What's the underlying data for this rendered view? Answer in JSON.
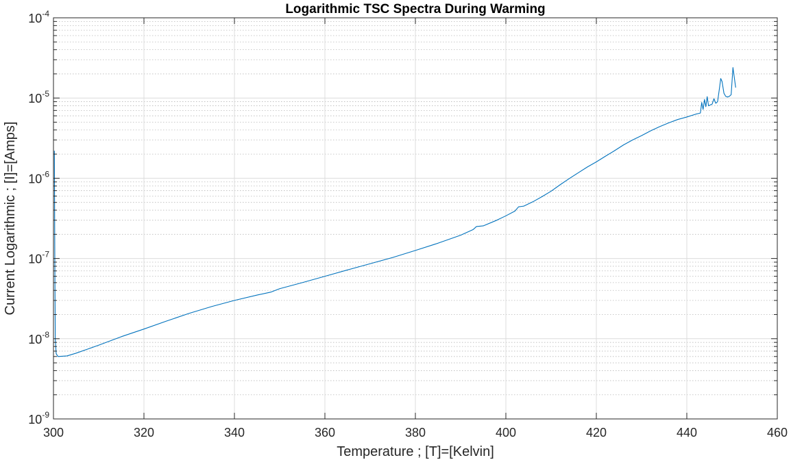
{
  "chart_data": {
    "type": "line",
    "title": "Logarithmic TSC Spectra During Warming",
    "xlabel": "Temperature ; [T]=[Kelvin]",
    "ylabel": "Current Logarithmic ; [I]=[Amps]",
    "xlim": [
      300,
      460
    ],
    "ylim": [
      1e-09,
      0.0001
    ],
    "yscale": "log",
    "grid": true,
    "minor_grid": true,
    "x_ticks": [
      300,
      320,
      340,
      360,
      380,
      400,
      420,
      440,
      460
    ],
    "y_ticks": [
      {
        "base": "10",
        "exp": "-9",
        "value": 1e-09
      },
      {
        "base": "10",
        "exp": "-8",
        "value": 1e-08
      },
      {
        "base": "10",
        "exp": "-7",
        "value": 1e-07
      },
      {
        "base": "10",
        "exp": "-6",
        "value": 1e-06
      },
      {
        "base": "10",
        "exp": "-5",
        "value": 1e-05
      },
      {
        "base": "10",
        "exp": "-4",
        "value": 0.0001
      }
    ],
    "series": [
      {
        "color": "#0072BD",
        "points": [
          [
            300.2,
            2.2e-06
          ],
          [
            300.3,
            1e-07
          ],
          [
            300.4,
            1e-08
          ],
          [
            300.6,
            6.5e-09
          ],
          [
            301.0,
            6e-09
          ],
          [
            303,
            6.1e-09
          ],
          [
            305,
            6.6e-09
          ],
          [
            310,
            8.3e-09
          ],
          [
            315,
            1.06e-08
          ],
          [
            320,
            1.32e-08
          ],
          [
            325,
            1.66e-08
          ],
          [
            330,
            2.07e-08
          ],
          [
            335,
            2.52e-08
          ],
          [
            340,
            3e-08
          ],
          [
            345,
            3.5e-08
          ],
          [
            348,
            3.8e-08
          ],
          [
            350,
            4.2e-08
          ],
          [
            355,
            5e-08
          ],
          [
            360,
            6e-08
          ],
          [
            365,
            7.2e-08
          ],
          [
            370,
            8.6e-08
          ],
          [
            375,
            1.03e-07
          ],
          [
            380,
            1.26e-07
          ],
          [
            385,
            1.55e-07
          ],
          [
            390,
            1.95e-07
          ],
          [
            392.8,
            2.3e-07
          ],
          [
            393.5,
            2.5e-07
          ],
          [
            395,
            2.55e-07
          ],
          [
            398,
            3e-07
          ],
          [
            400,
            3.4e-07
          ],
          [
            402,
            3.9e-07
          ],
          [
            402.8,
            4.4e-07
          ],
          [
            404,
            4.5e-07
          ],
          [
            406,
            5.1e-07
          ],
          [
            408,
            5.9e-07
          ],
          [
            410,
            6.9e-07
          ],
          [
            412,
            8.3e-07
          ],
          [
            414,
            9.9e-07
          ],
          [
            416,
            1.17e-06
          ],
          [
            418,
            1.38e-06
          ],
          [
            420,
            1.6e-06
          ],
          [
            422,
            1.88e-06
          ],
          [
            424,
            2.2e-06
          ],
          [
            426,
            2.6e-06
          ],
          [
            428,
            3e-06
          ],
          [
            430,
            3.4e-06
          ],
          [
            432,
            3.9e-06
          ],
          [
            434,
            4.4e-06
          ],
          [
            436,
            4.9e-06
          ],
          [
            438,
            5.4e-06
          ],
          [
            440,
            5.8e-06
          ],
          [
            442,
            6.3e-06
          ],
          [
            443.0,
            6.5e-06
          ],
          [
            443.3,
            8.8e-06
          ],
          [
            443.6,
            7.2e-06
          ],
          [
            443.9,
            9.6e-06
          ],
          [
            444.2,
            7.8e-06
          ],
          [
            444.5,
            1.04e-05
          ],
          [
            444.8,
            8e-06
          ],
          [
            445.2,
            8.2e-06
          ],
          [
            445.6,
            8.4e-06
          ],
          [
            446.0,
            9.8e-06
          ],
          [
            446.4,
            8.6e-06
          ],
          [
            446.8,
            9e-06
          ],
          [
            447.2,
            1.3e-05
          ],
          [
            447.5,
            1.75e-05
          ],
          [
            447.8,
            1.6e-05
          ],
          [
            448.2,
            1.15e-05
          ],
          [
            448.6,
            1.05e-05
          ],
          [
            449.0,
            1.03e-05
          ],
          [
            449.4,
            1.05e-05
          ],
          [
            449.8,
            1.1e-05
          ],
          [
            450.2,
            2.4e-05
          ],
          [
            450.5,
            1.8e-05
          ],
          [
            450.8,
            1.35e-05
          ]
        ]
      }
    ]
  }
}
